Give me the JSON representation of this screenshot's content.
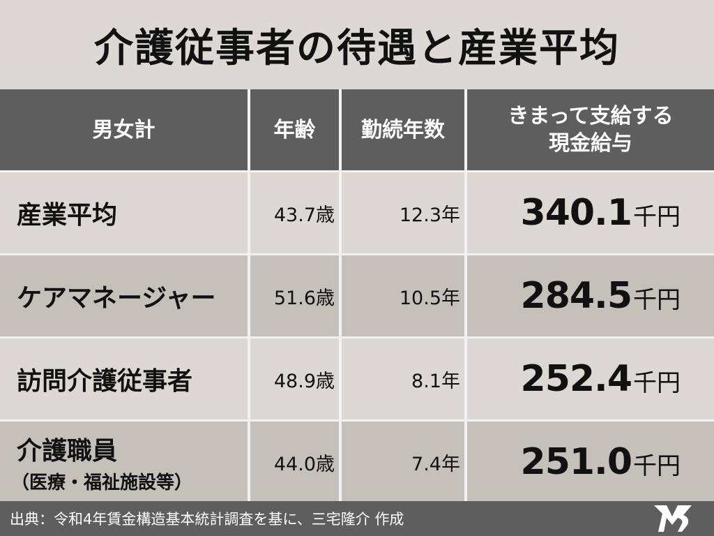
{
  "title": "介護従事者の待遇と産業平均",
  "headers": {
    "category": "男女計",
    "age": "年齢",
    "tenure": "勤続年数",
    "wage_line1": "きまって支給する",
    "wage_line2": "現金給与"
  },
  "rows": [
    {
      "label": "産業平均",
      "sub": "",
      "age": "43.7歳",
      "tenure": "12.3年",
      "wage": "340.1",
      "unit": "千円"
    },
    {
      "label": "ケアマネージャー",
      "sub": "",
      "age": "51.6歳",
      "tenure": "10.5年",
      "wage": "284.5",
      "unit": "千円"
    },
    {
      "label": "訪問介護従事者",
      "sub": "",
      "age": "48.9歳",
      "tenure": "8.1年",
      "wage": "252.4",
      "unit": "千円"
    },
    {
      "label": "介護職員",
      "sub": "（医療・福祉施設等）",
      "age": "44.0歳",
      "tenure": "7.4年",
      "wage": "251.0",
      "unit": "千円"
    }
  ],
  "footer": "出典：令和4年賃金構造基本統計調査を基に、三宅隆介 作成",
  "logo_icon": "mr-monogram-icon"
}
